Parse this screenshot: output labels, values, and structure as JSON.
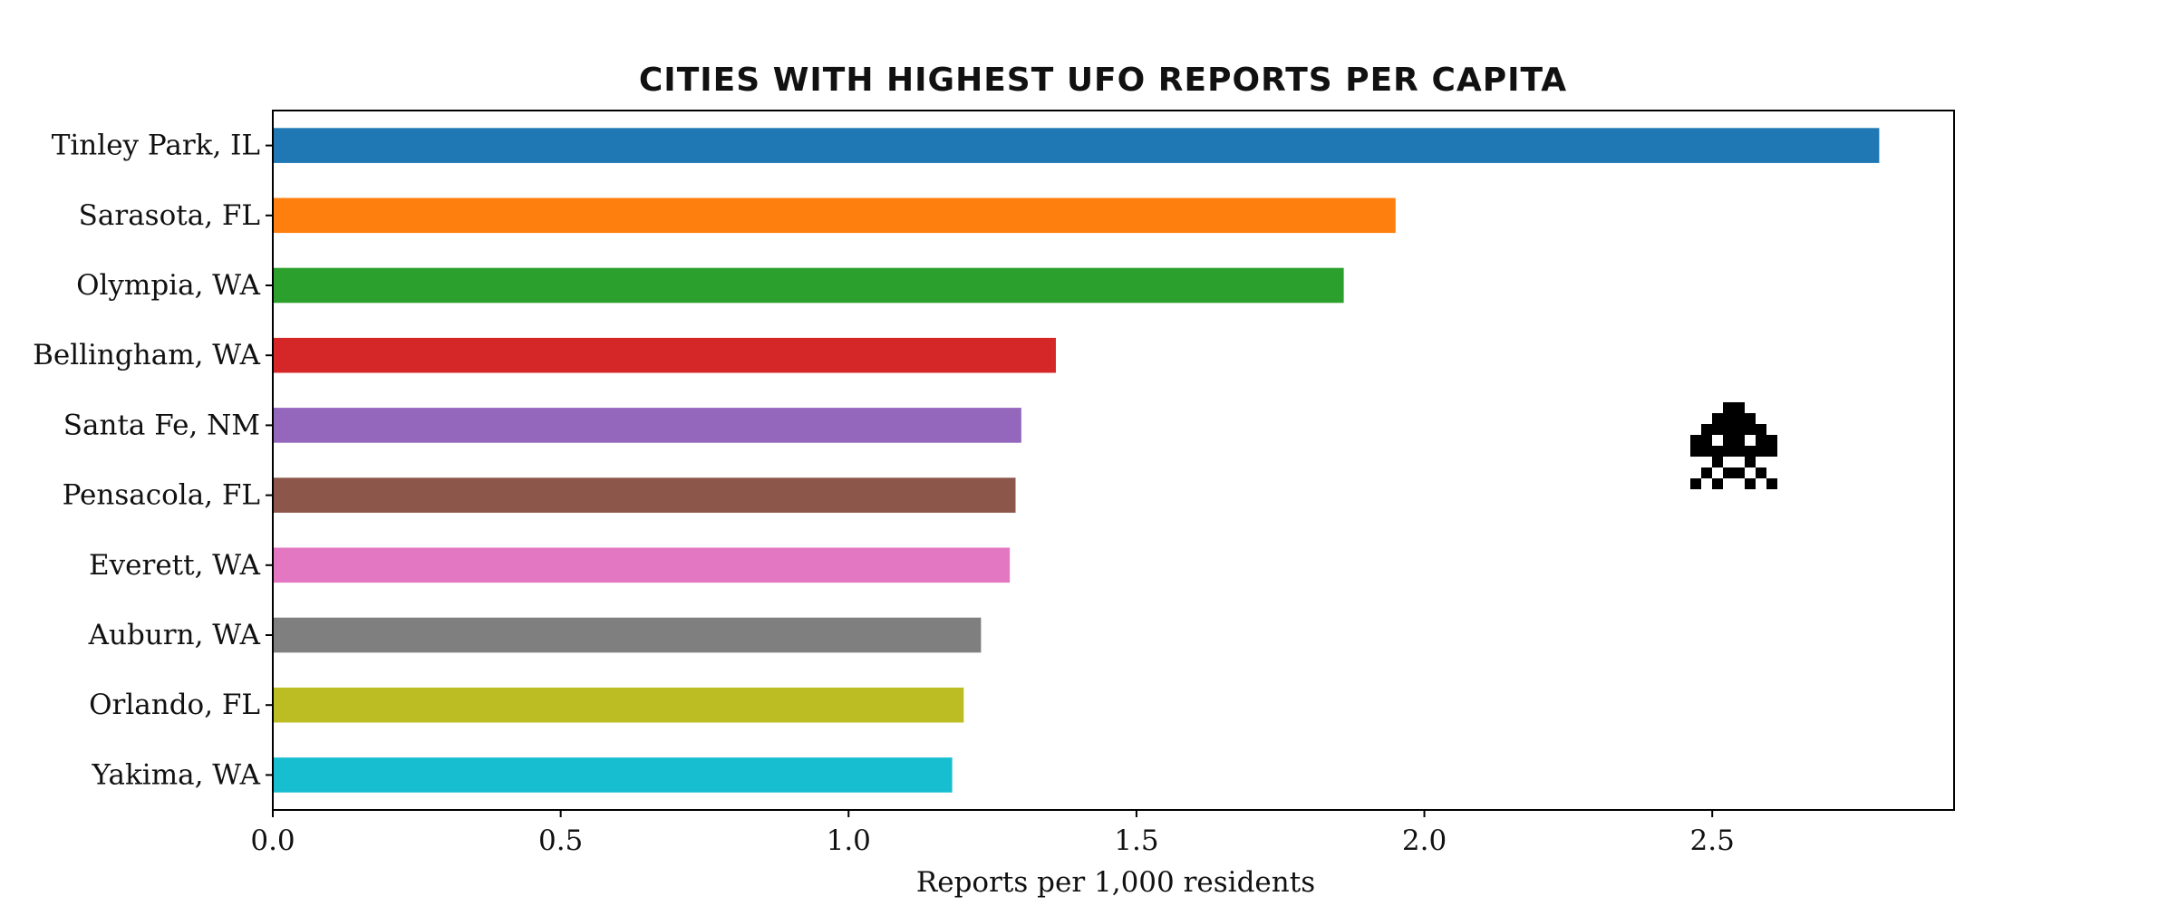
{
  "chart_data": {
    "type": "bar",
    "orientation": "horizontal",
    "title": "CITIES WITH HIGHEST UFO REPORTS PER CAPITA",
    "xlabel": "Reports per 1,000 residents",
    "ylabel": "",
    "xlim": [
      0,
      2.92
    ],
    "xticks": [
      "0.0",
      "0.5",
      "1.0",
      "1.5",
      "2.0",
      "2.5"
    ],
    "grid": false,
    "legend": "none",
    "categories": [
      "Tinley Park, IL",
      "Sarasota, FL",
      "Olympia, WA",
      "Bellingham, WA",
      "Santa Fe, NM",
      "Pensacola, FL",
      "Everett, WA",
      "Auburn, WA",
      "Orlando, FL",
      "Yakima, WA"
    ],
    "values": [
      2.79,
      1.95,
      1.86,
      1.36,
      1.3,
      1.29,
      1.28,
      1.23,
      1.2,
      1.18
    ],
    "colors": [
      "#1f77b4",
      "#ff7f0e",
      "#2ca02c",
      "#d62728",
      "#9467bd",
      "#8c564b",
      "#e377c2",
      "#7f7f7f",
      "#bcbd22",
      "#17becf"
    ],
    "decoration": "space-invader-icon"
  }
}
